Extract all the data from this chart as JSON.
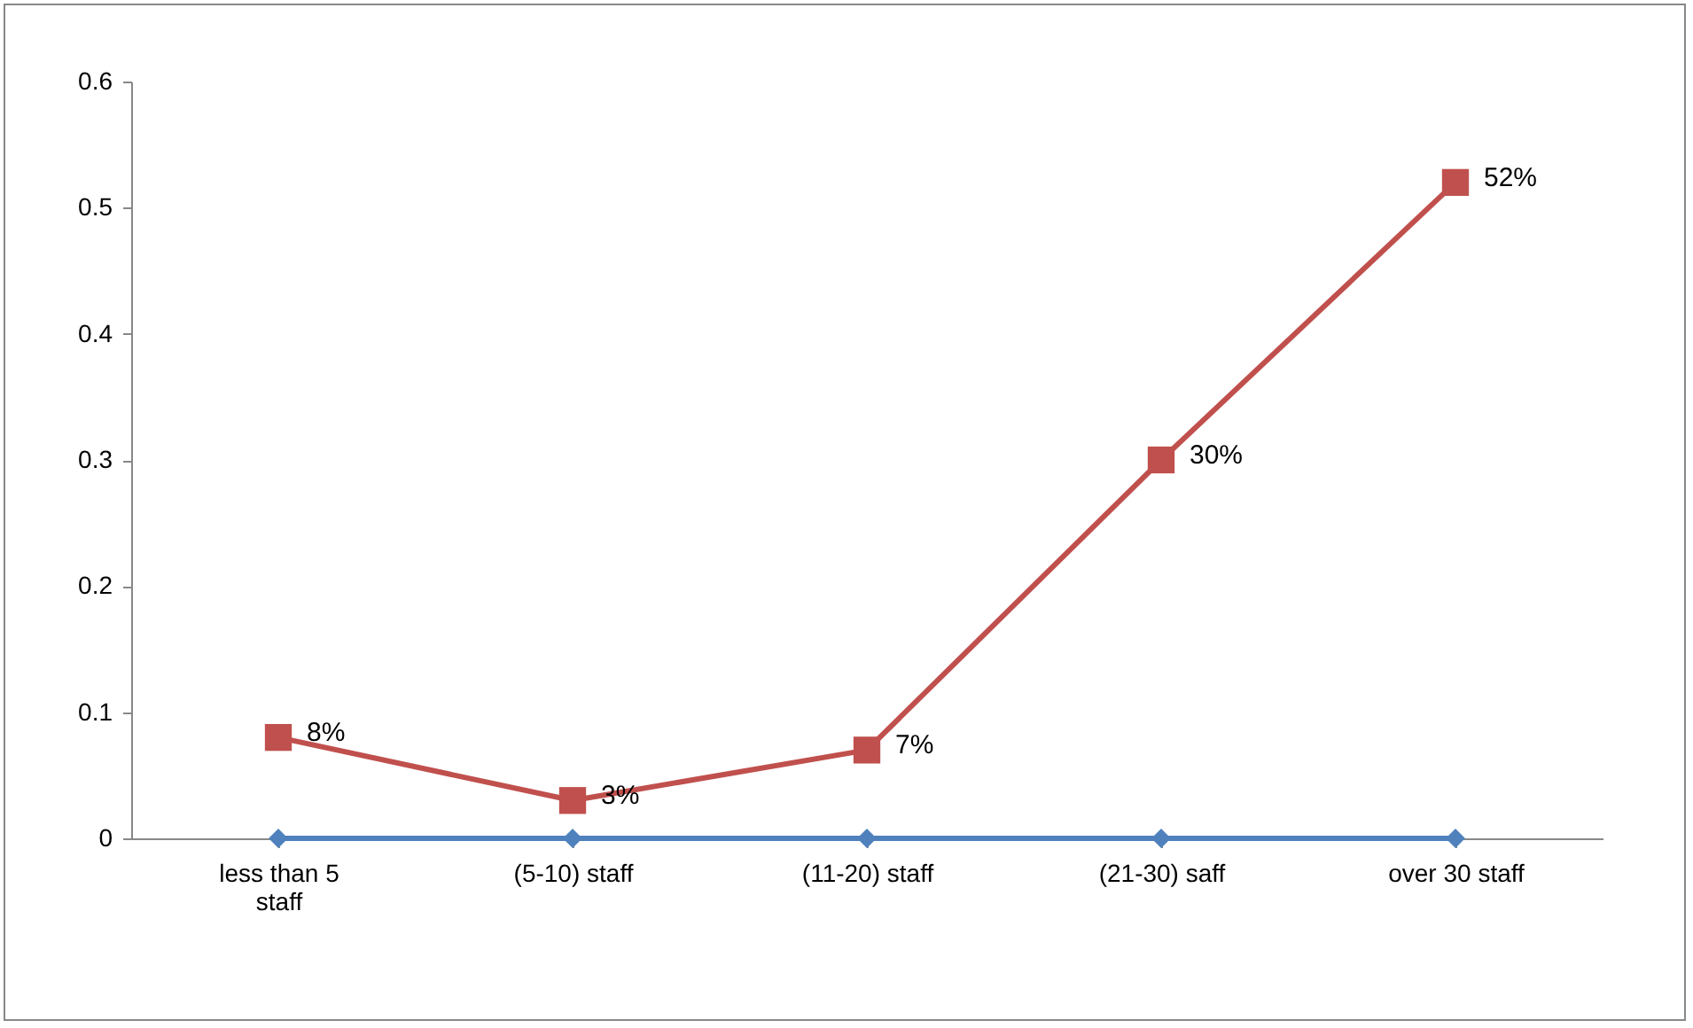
{
  "chart_data": {
    "type": "line",
    "categories": [
      "less than 5 staff",
      "(5-10) staff",
      "(11-20) staff",
      "(21-30) saff",
      "over 30 staff"
    ],
    "series": [
      {
        "color": "#4f81bd",
        "marker": "diamond",
        "values": [
          0,
          0,
          0,
          0,
          0
        ]
      },
      {
        "color": "#c0504d",
        "marker": "square",
        "values": [
          0.08,
          0.03,
          0.07,
          0.3,
          0.52
        ],
        "value_labels": [
          "8%",
          "3%",
          "7%",
          "30%",
          "52%"
        ]
      }
    ],
    "ylim": [
      0,
      0.6
    ],
    "yticks": [
      0,
      0.1,
      0.2,
      0.3,
      0.4,
      0.5,
      0.6
    ],
    "grid": false,
    "line_style": "solid"
  }
}
